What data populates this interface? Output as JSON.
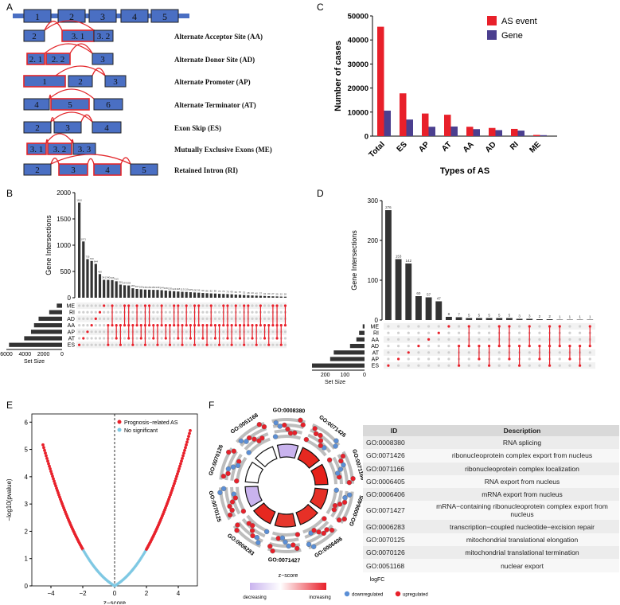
{
  "panel_letters": {
    "a": "A",
    "b": "B",
    "c": "C",
    "d": "D",
    "e": "E",
    "f": "F"
  },
  "panel_a": {
    "top_exons": [
      "1",
      "2",
      "3",
      "4",
      "5"
    ],
    "events": [
      {
        "label": "Alternate Acceptor Site (AA)",
        "exons": [
          "2",
          "3. 1",
          "3. 2"
        ]
      },
      {
        "label": "Alternate Donor Site (AD)",
        "exons": [
          "2. 1",
          "2. 2",
          "3"
        ]
      },
      {
        "label": "Alternate Promoter (AP)",
        "exons": [
          "1",
          "2",
          "3"
        ]
      },
      {
        "label": "Alternate Terminator (AT)",
        "exons": [
          "4",
          "5",
          "6"
        ]
      },
      {
        "label": "Exon Skip (ES)",
        "exons": [
          "2",
          "3",
          "4"
        ]
      },
      {
        "label": "Mutually Exclusive Exons (ME)",
        "exons": [
          "3. 1",
          "3. 2",
          "3. 3"
        ]
      },
      {
        "label": "Retained Intron (RI)",
        "exons": [
          "2",
          "3",
          "4",
          "5"
        ]
      }
    ],
    "colors": {
      "exon": "#4a6fc3",
      "junction": "#e3262a",
      "bar": "#4a6fc3"
    }
  },
  "chart_data": [
    {
      "id": "C",
      "type": "bar",
      "categories": [
        "Total",
        "ES",
        "AP",
        "AT",
        "AA",
        "AD",
        "RI",
        "ME"
      ],
      "series": [
        {
          "name": "AS event",
          "color": "#e8202a",
          "values": [
            45500,
            17800,
            9400,
            8900,
            3900,
            3400,
            3000,
            500
          ]
        },
        {
          "name": "Gene",
          "color": "#4b3f8f",
          "values": [
            10600,
            6900,
            3900,
            4000,
            2900,
            2500,
            2300,
            400
          ]
        }
      ],
      "xlabel": "Types of AS",
      "ylabel": "Number of cases",
      "ylim": [
        0,
        50000
      ],
      "yticks": [
        "0",
        "10000",
        "20000",
        "30000",
        "40000",
        "50000"
      ],
      "legend": "top-right"
    },
    {
      "id": "B",
      "type": "bar",
      "ylabel": "Gene Intersections",
      "ylim": [
        0,
        2000
      ],
      "yticks": [
        "0",
        "500",
        "1000",
        "1500",
        "2000"
      ],
      "values": [
        1810,
        1071,
        735,
        700,
        644,
        450,
        341,
        340,
        336,
        313,
        250,
        237,
        233,
        180,
        167,
        160,
        155,
        153,
        150,
        149,
        144,
        136,
        130,
        124,
        118,
        113,
        110,
        105,
        100,
        96,
        90,
        86,
        82,
        80,
        75,
        72,
        70,
        66,
        60,
        57,
        52,
        48,
        43,
        40,
        37,
        34,
        30,
        27,
        25,
        22,
        20
      ],
      "sets": [
        "ME",
        "RI",
        "AD",
        "AA",
        "AP",
        "AT",
        "ES"
      ],
      "set_sizes": [
        700,
        1700,
        3100,
        3700,
        4100,
        5000,
        7000
      ],
      "set_size_label": "Set Size",
      "set_ticks": [
        "6000",
        "4000",
        "2000",
        "0"
      ]
    },
    {
      "id": "D",
      "type": "bar",
      "ylabel": "Gene Intersections",
      "ylim": [
        0,
        300
      ],
      "yticks": [
        "0",
        "100",
        "200",
        "300"
      ],
      "values": [
        276,
        153,
        142,
        60,
        57,
        47,
        8,
        7,
        5,
        5,
        5,
        5,
        5,
        3,
        3,
        2,
        2,
        1,
        1,
        1,
        1
      ],
      "bar_labels": [
        "276",
        "153",
        "142",
        "60",
        "57",
        "47",
        "8",
        "7",
        "5",
        "5",
        "5",
        "5",
        "5",
        "3",
        "3",
        "2",
        "2",
        "1",
        "1",
        "1",
        "1"
      ],
      "sets": [
        "ME",
        "RI",
        "AA",
        "AD",
        "AT",
        "AP",
        "ES"
      ],
      "set_sizes": [
        10,
        30,
        45,
        80,
        170,
        190,
        310
      ],
      "set_size_label": "Set Size",
      "set_ticks": [
        "300",
        "200",
        "100",
        "0"
      ]
    },
    {
      "id": "E",
      "type": "scatter",
      "xlabel": "z−score",
      "ylabel": "−log10(pvalue)",
      "xlim": [
        -5.2,
        5.2
      ],
      "ylim": [
        0,
        6.3
      ],
      "xticks": [
        "−4",
        "−2",
        "0",
        "2",
        "4"
      ],
      "yticks": [
        "0",
        "1",
        "2",
        "3",
        "4",
        "5",
        "6"
      ],
      "series": [
        {
          "name": "Prognosis−related AS",
          "color": "#e8202a"
        },
        {
          "name": "No significant",
          "color": "#7ec8e3"
        }
      ],
      "legend": "top-right"
    }
  ],
  "panel_f": {
    "go_terms": [
      "GO:0008380",
      "GO:0071426",
      "GO:0071166",
      "GO:0006405",
      "GO:0006406",
      "GO:0071427",
      "GO:0006283",
      "GO:0070125",
      "GO:0070126",
      "GO:0051168"
    ],
    "zscore_colors": [
      0.1,
      0.9,
      0.95,
      0.85,
      0.85,
      0.8,
      0.9,
      0.15,
      0.0,
      0.0
    ],
    "legend": {
      "z_title": "z−score",
      "z_low": "decreasing",
      "z_high": "increasing",
      "logfc_title": "logFC",
      "down": "downregulated",
      "up": "upregulated",
      "down_color": "#5b8fd6",
      "up_color": "#e8202a"
    },
    "table": {
      "headers": [
        "ID",
        "Description"
      ],
      "rows": [
        [
          "GO:0008380",
          "RNA splicing"
        ],
        [
          "GO:0071426",
          "ribonucleoprotein complex export from nucleus"
        ],
        [
          "GO:0071166",
          "ribonucleoprotein complex localization"
        ],
        [
          "GO:0006405",
          "RNA export from nucleus"
        ],
        [
          "GO:0006406",
          "mRNA export from nucleus"
        ],
        [
          "GO:0071427",
          "mRNA−containing ribonucleoprotein complex export from nucleus"
        ],
        [
          "GO:0006283",
          "transcription−coupled nucleotide−excision repair"
        ],
        [
          "GO:0070125",
          "mitochondrial translational elongation"
        ],
        [
          "GO:0070126",
          "mitochondrial translational termination"
        ],
        [
          "GO:0051168",
          "nuclear export"
        ]
      ]
    }
  }
}
